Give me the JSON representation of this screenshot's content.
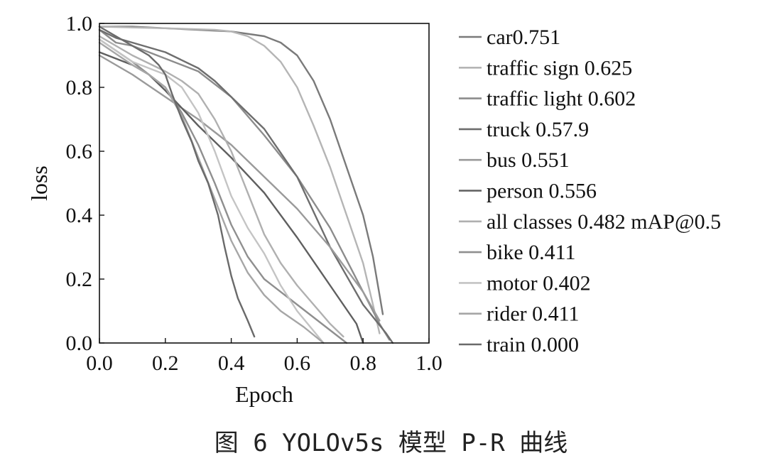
{
  "caption": "图 6  YOLOv5s 模型 P-R 曲线",
  "chart_data": {
    "type": "line",
    "title": "",
    "xlabel": "Epoch",
    "ylabel": "loss",
    "xlim": [
      0.0,
      1.0
    ],
    "ylim": [
      0.0,
      1.0
    ],
    "xticks": [
      "0.0",
      "0.2",
      "0.4",
      "0.6",
      "0.8",
      "1.0"
    ],
    "yticks": [
      "0.0",
      "0.2",
      "0.4",
      "0.6",
      "0.8",
      "1.0"
    ],
    "grid": false,
    "legend_position": "right",
    "series": [
      {
        "name": "car0.751",
        "color": "#7a7a7a",
        "x": [
          0.0,
          0.1,
          0.2,
          0.3,
          0.4,
          0.5,
          0.55,
          0.6,
          0.65,
          0.7,
          0.75,
          0.8,
          0.83,
          0.85,
          0.86
        ],
        "y": [
          0.99,
          0.99,
          0.985,
          0.98,
          0.975,
          0.96,
          0.94,
          0.9,
          0.82,
          0.7,
          0.55,
          0.4,
          0.27,
          0.15,
          0.09
        ]
      },
      {
        "name": "traffic sign 0.625",
        "color": "#b5b5b5",
        "x": [
          0.0,
          0.2,
          0.35,
          0.4,
          0.45,
          0.5,
          0.55,
          0.6,
          0.65,
          0.7,
          0.75,
          0.8,
          0.83,
          0.85
        ],
        "y": [
          0.99,
          0.985,
          0.98,
          0.975,
          0.96,
          0.93,
          0.88,
          0.8,
          0.68,
          0.55,
          0.4,
          0.25,
          0.12,
          0.03
        ]
      },
      {
        "name": "traffic light 0.602",
        "color": "#8c8c8c",
        "x": [
          0.0,
          0.05,
          0.1,
          0.2,
          0.3,
          0.4,
          0.5,
          0.6,
          0.7,
          0.8,
          0.85,
          0.88
        ],
        "y": [
          0.98,
          0.94,
          0.93,
          0.89,
          0.85,
          0.77,
          0.65,
          0.52,
          0.36,
          0.16,
          0.06,
          0.01
        ]
      },
      {
        "name": "truck 0.57.9",
        "color": "#6e6e6e",
        "x": [
          0.0,
          0.05,
          0.1,
          0.2,
          0.3,
          0.35,
          0.4,
          0.5,
          0.6,
          0.7,
          0.8,
          0.87,
          0.89
        ],
        "y": [
          0.98,
          0.955,
          0.94,
          0.91,
          0.86,
          0.82,
          0.77,
          0.67,
          0.52,
          0.3,
          0.12,
          0.03,
          0.0
        ]
      },
      {
        "name": "bus 0.551",
        "color": "#9a9a9a",
        "x": [
          0.0,
          0.1,
          0.2,
          0.3,
          0.4,
          0.5,
          0.6,
          0.7,
          0.8,
          0.85
        ],
        "y": [
          0.9,
          0.84,
          0.77,
          0.7,
          0.62,
          0.52,
          0.42,
          0.3,
          0.16,
          0.07
        ]
      },
      {
        "name": "person 0.556",
        "color": "#5f5f5f",
        "x": [
          0.0,
          0.1,
          0.15,
          0.2,
          0.3,
          0.35,
          0.4,
          0.5,
          0.6,
          0.7,
          0.78,
          0.8
        ],
        "y": [
          0.91,
          0.87,
          0.84,
          0.79,
          0.68,
          0.63,
          0.58,
          0.47,
          0.33,
          0.18,
          0.06,
          0.0
        ]
      },
      {
        "name": "all classes 0.482 mAP@0.5",
        "color": "#b0b0b0",
        "x": [
          0.0,
          0.1,
          0.2,
          0.25,
          0.3,
          0.35,
          0.4,
          0.45,
          0.5,
          0.55,
          0.6,
          0.65,
          0.7,
          0.74
        ],
        "y": [
          0.96,
          0.9,
          0.85,
          0.82,
          0.78,
          0.7,
          0.6,
          0.47,
          0.34,
          0.25,
          0.18,
          0.12,
          0.06,
          0.02
        ]
      },
      {
        "name": "bike 0.411",
        "color": "#8f8f8f",
        "x": [
          0.0,
          0.1,
          0.15,
          0.2,
          0.25,
          0.3,
          0.35,
          0.4,
          0.45,
          0.5,
          0.6,
          0.7,
          0.75
        ],
        "y": [
          0.95,
          0.88,
          0.84,
          0.8,
          0.72,
          0.62,
          0.5,
          0.37,
          0.27,
          0.2,
          0.12,
          0.04,
          0.0
        ]
      },
      {
        "name": "motor 0.402",
        "color": "#c4c4c4",
        "x": [
          0.0,
          0.1,
          0.15,
          0.2,
          0.25,
          0.3,
          0.35,
          0.4,
          0.45,
          0.5,
          0.55,
          0.6,
          0.68
        ],
        "y": [
          0.95,
          0.88,
          0.86,
          0.84,
          0.8,
          0.72,
          0.6,
          0.46,
          0.36,
          0.28,
          0.18,
          0.1,
          0.0
        ]
      },
      {
        "name": "rider 0.411",
        "color": "#a6a6a6",
        "x": [
          0.0,
          0.1,
          0.15,
          0.2,
          0.25,
          0.3,
          0.35,
          0.4,
          0.45,
          0.5,
          0.55,
          0.62,
          0.68
        ],
        "y": [
          0.94,
          0.87,
          0.84,
          0.8,
          0.71,
          0.58,
          0.45,
          0.32,
          0.22,
          0.15,
          0.1,
          0.05,
          0.0
        ]
      },
      {
        "name": "train 0.000",
        "color": "#6a6a6a",
        "x": [
          0.0,
          0.05,
          0.1,
          0.15,
          0.18,
          0.2,
          0.22,
          0.25,
          0.28,
          0.3,
          0.33,
          0.36,
          0.38,
          0.4,
          0.42,
          0.45,
          0.47
        ],
        "y": [
          0.99,
          0.96,
          0.93,
          0.9,
          0.87,
          0.84,
          0.78,
          0.7,
          0.63,
          0.57,
          0.5,
          0.4,
          0.3,
          0.21,
          0.14,
          0.07,
          0.02
        ]
      }
    ]
  }
}
